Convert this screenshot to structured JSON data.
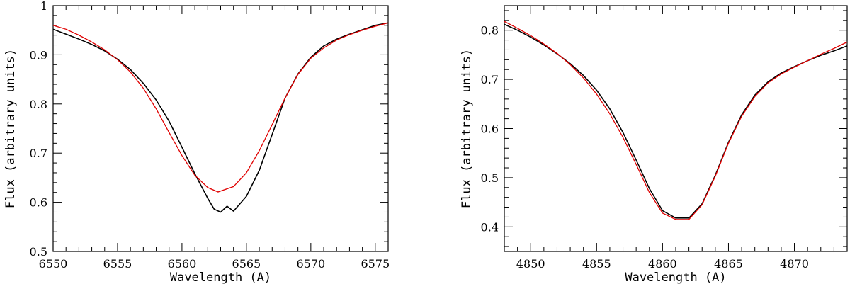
{
  "chart_data": [
    {
      "type": "line",
      "xlabel": "Wavelength (A)",
      "ylabel": "Flux (arbitrary units)",
      "xlim": [
        6550,
        6576
      ],
      "ylim": [
        0.5,
        1.0
      ],
      "x_ticks": [
        6550,
        6555,
        6560,
        6565,
        6570,
        6575
      ],
      "y_ticks": [
        0.5,
        0.6,
        0.7,
        0.8,
        0.9,
        1.0
      ],
      "y_tick_labels": [
        "0.5",
        "0.6",
        "0.7",
        "0.8",
        "0.9",
        "1"
      ],
      "grid": false,
      "series": [
        {
          "role": "observed",
          "color": "#000000",
          "x": [
            6550,
            6551,
            6552,
            6553,
            6554,
            6555,
            6556,
            6557,
            6558,
            6559,
            6560,
            6561,
            6562,
            6562.5,
            6563,
            6563.5,
            6564,
            6565,
            6566,
            6567,
            6568,
            6569,
            6570,
            6571,
            6572,
            6573,
            6574,
            6575,
            6576
          ],
          "y": [
            0.952,
            0.942,
            0.932,
            0.921,
            0.908,
            0.891,
            0.87,
            0.842,
            0.808,
            0.765,
            0.712,
            0.658,
            0.608,
            0.586,
            0.58,
            0.592,
            0.582,
            0.612,
            0.665,
            0.738,
            0.812,
            0.861,
            0.895,
            0.918,
            0.932,
            0.942,
            0.951,
            0.96,
            0.965
          ]
        },
        {
          "role": "model",
          "color": "#e00000",
          "x": [
            6550,
            6551,
            6552,
            6553,
            6554,
            6555,
            6556,
            6557,
            6558,
            6559,
            6560,
            6561,
            6562,
            6562.8,
            6564,
            6565,
            6566,
            6567,
            6568,
            6569,
            6570,
            6571,
            6572,
            6573,
            6574,
            6575,
            6576
          ],
          "y": [
            0.96,
            0.952,
            0.94,
            0.926,
            0.91,
            0.89,
            0.865,
            0.832,
            0.79,
            0.742,
            0.695,
            0.655,
            0.63,
            0.621,
            0.632,
            0.66,
            0.705,
            0.758,
            0.812,
            0.86,
            0.893,
            0.914,
            0.93,
            0.941,
            0.95,
            0.958,
            0.965
          ]
        }
      ]
    },
    {
      "type": "line",
      "xlabel": "Wavelength (A)",
      "ylabel": "Flux (arbitrary units)",
      "xlim": [
        4848,
        4874
      ],
      "ylim": [
        0.35,
        0.85
      ],
      "x_ticks": [
        4850,
        4855,
        4860,
        4865,
        4870
      ],
      "y_ticks": [
        0.4,
        0.5,
        0.6,
        0.7,
        0.8
      ],
      "y_tick_labels": [
        "0.4",
        "0.5",
        "0.6",
        "0.7",
        "0.8"
      ],
      "grid": false,
      "series": [
        {
          "role": "observed",
          "color": "#000000",
          "x": [
            4848,
            4849,
            4850,
            4851,
            4852,
            4853,
            4854,
            4855,
            4856,
            4857,
            4858,
            4859,
            4860,
            4861,
            4862,
            4863,
            4864,
            4865,
            4866,
            4867,
            4868,
            4869,
            4870,
            4871,
            4872,
            4873,
            4874
          ],
          "y": [
            0.812,
            0.8,
            0.786,
            0.77,
            0.752,
            0.732,
            0.708,
            0.678,
            0.64,
            0.592,
            0.536,
            0.478,
            0.433,
            0.418,
            0.418,
            0.447,
            0.505,
            0.572,
            0.628,
            0.668,
            0.695,
            0.713,
            0.726,
            0.738,
            0.749,
            0.758,
            0.768
          ]
        },
        {
          "role": "model",
          "color": "#e00000",
          "x": [
            4848,
            4849,
            4850,
            4851,
            4852,
            4853,
            4854,
            4855,
            4856,
            4857,
            4858,
            4859,
            4860,
            4861,
            4862,
            4863,
            4864,
            4865,
            4866,
            4867,
            4868,
            4869,
            4870,
            4871,
            4872,
            4873,
            4874
          ],
          "y": [
            0.818,
            0.804,
            0.789,
            0.772,
            0.753,
            0.73,
            0.703,
            0.67,
            0.63,
            0.582,
            0.527,
            0.47,
            0.428,
            0.415,
            0.415,
            0.445,
            0.503,
            0.57,
            0.625,
            0.665,
            0.693,
            0.711,
            0.725,
            0.738,
            0.751,
            0.763,
            0.776
          ]
        }
      ]
    }
  ]
}
